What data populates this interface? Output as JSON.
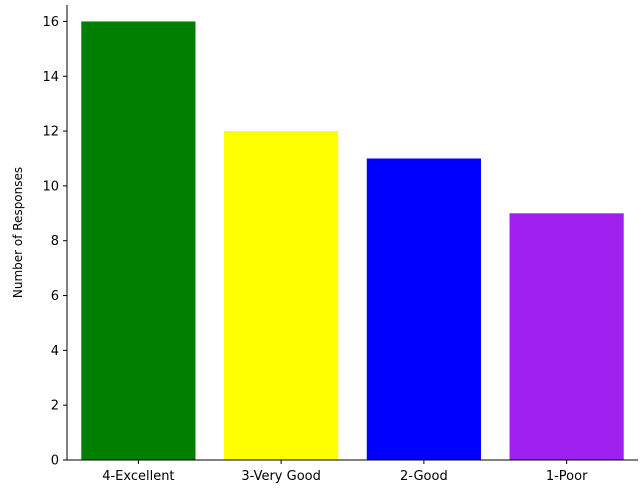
{
  "chart_data": {
    "type": "bar",
    "categories": [
      "4-Excellent",
      "3-Very Good",
      "2-Good",
      "1-Poor"
    ],
    "values": [
      16,
      12,
      11,
      9
    ],
    "colors": [
      "#008000",
      "#ffff00",
      "#0000ff",
      "#a020f0"
    ],
    "title": "",
    "xlabel": "",
    "ylabel": "Number of Responses",
    "ylim": [
      0,
      16.6
    ],
    "yticks": [
      0,
      2,
      4,
      6,
      8,
      10,
      12,
      14,
      16
    ],
    "grid": false,
    "legend": "none"
  }
}
